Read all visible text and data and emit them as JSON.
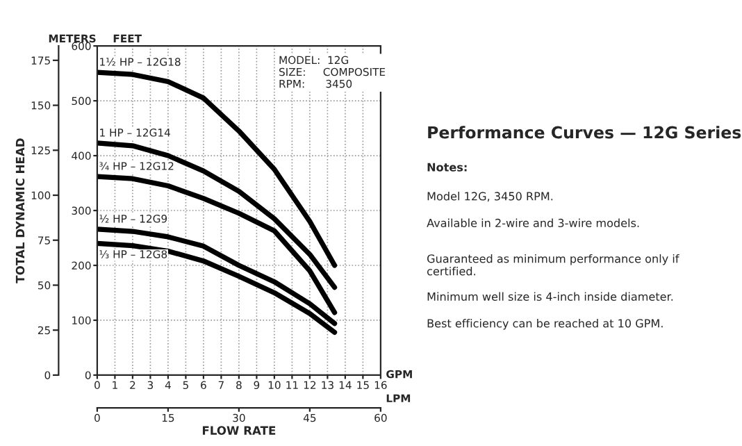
{
  "chart_data": {
    "type": "line",
    "title": "Performance Curves — 12G Series",
    "xlabel": "FLOW RATE",
    "y2label": "TOTAL DYNAMIC HEAD",
    "x": [
      0,
      2,
      4,
      6,
      8,
      10,
      12,
      13.4
    ],
    "series": [
      {
        "name": "1½ HP – 12G18",
        "color": "#000000",
        "values": [
          552,
          548,
          535,
          505,
          445,
          375,
          280,
          200
        ]
      },
      {
        "name": "1 HP – 12G14",
        "color": "#000000",
        "values": [
          423,
          418,
          400,
          372,
          335,
          285,
          220,
          160
        ]
      },
      {
        "name": "¾ HP – 12G12",
        "color": "#000000",
        "values": [
          362,
          358,
          345,
          322,
          295,
          263,
          190,
          114
        ]
      },
      {
        "name": "½ HP – 12G9",
        "color": "#000000",
        "values": [
          266,
          262,
          252,
          235,
          200,
          170,
          130,
          94
        ]
      },
      {
        "name": "⅓ HP – 12G8",
        "color": "#000000",
        "values": [
          240,
          236,
          226,
          208,
          180,
          150,
          112,
          78
        ]
      }
    ],
    "xlim": [
      0,
      16
    ],
    "xticks": [
      0,
      1,
      2,
      3,
      4,
      5,
      6,
      7,
      8,
      9,
      10,
      11,
      12,
      13,
      14,
      15,
      16
    ],
    "ylim": [
      0,
      600
    ],
    "yticks": [
      0,
      100,
      200,
      300,
      400,
      500,
      600
    ],
    "y2lim": [
      0,
      183
    ],
    "y2ticks": [
      0,
      25,
      50,
      75,
      100,
      125,
      150,
      175
    ],
    "x2lim": [
      0,
      60
    ],
    "x2ticks": [
      0,
      15,
      30,
      45,
      60
    ],
    "grid": true,
    "legend": false,
    "marker": "none",
    "line_style": "solid",
    "annotations": [
      "METERS",
      "FEET",
      "GPM",
      "LPM",
      "MODEL:  12G\nSIZE:     COMPOSITE\nRPM:      3450",
      "Notes:",
      "Model 12G, 3450 RPM.",
      "Available in 2-wire and 3-wire models.",
      "Guaranteed as minimum performance only if\ncertified.",
      "Minimum well size is 4-inch inside diameter.",
      "Best efficiency can be reached at 10 GPM."
    ]
  }
}
